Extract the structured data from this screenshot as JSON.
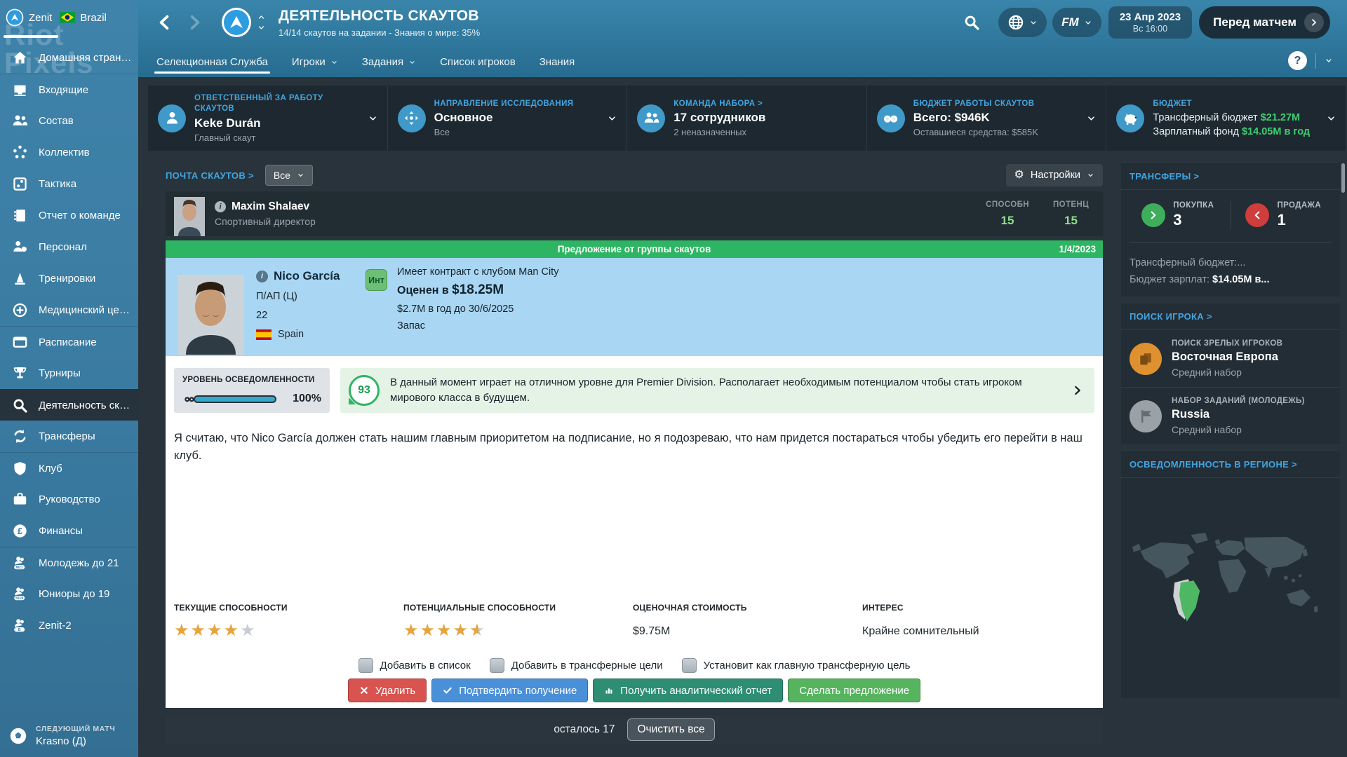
{
  "watermark": {
    "line1": "Riot",
    "line2": "Pixels"
  },
  "topbar": {
    "club_name": "Zenit",
    "nation_name": "Brazil",
    "title": "ДЕЯТЕЛЬНОСТЬ СКАУТОВ",
    "subtitle": "14/14 скаутов на задании - Знания о мире: 35%",
    "fm_label": "FM",
    "date_line1": "23 Апр 2023",
    "date_line2": "Вс 16:00",
    "continue_label": "Перед матчем",
    "help_label": "?"
  },
  "tabs": [
    {
      "label": "Селекционная Служба"
    },
    {
      "label": "Игроки"
    },
    {
      "label": "Задания"
    },
    {
      "label": "Список игроков"
    },
    {
      "label": "Знания"
    }
  ],
  "sidebar": {
    "items": [
      {
        "label": "Домашняя страница"
      },
      {
        "label": "Входящие"
      },
      {
        "label": "Состав"
      },
      {
        "label": "Коллектив"
      },
      {
        "label": "Тактика"
      },
      {
        "label": "Отчет о команде"
      },
      {
        "label": "Персонал"
      },
      {
        "label": "Тренировки"
      },
      {
        "label": "Медицинский центр"
      },
      {
        "label": "Расписание"
      },
      {
        "label": "Турниры"
      },
      {
        "label": "Деятельность скаут..."
      },
      {
        "label": "Трансферы"
      },
      {
        "label": "Клуб"
      },
      {
        "label": "Руководство"
      },
      {
        "label": "Финансы"
      },
      {
        "label": "Молодежь до 21"
      },
      {
        "label": "Юниоры до 19"
      },
      {
        "label": "Zenit-2"
      }
    ],
    "next_match_caption": "СЛЕДУЮЩИЙ МАТЧ",
    "next_match_team": "Krasno (Д)"
  },
  "info_panels": {
    "responsible": {
      "caption": "ОТВЕТСТВЕННЫЙ ЗА РАБОТУ СКАУТОВ",
      "value": "Keke Durán",
      "sub": "Главный скаут"
    },
    "focus": {
      "caption": "НАПРАВЛЕНИЕ ИССЛЕДОВАНИЯ",
      "value": "Основное",
      "sub": "Все"
    },
    "team": {
      "caption": "КОМАНДА НАБОРА >",
      "value": "17 сотрудников",
      "sub": "2 неназначенных"
    },
    "scout_budget": {
      "caption": "БЮДЖЕТ РАБОТЫ СКАУТОВ",
      "value": "Всего: $946K",
      "sub": "Оставшиеся средства: $585K"
    },
    "budget": {
      "caption": "БЮДЖЕТ",
      "row1_label": "Трансферный бюджет ",
      "row1_value": "$21.27M",
      "row2_label": "Зарплатный фонд ",
      "row2_value": "$14.05M в год"
    }
  },
  "toolbar": {
    "mail_link": "ПОЧТА СКАУТОВ >",
    "filter_value": "Все",
    "settings_label": "Настройки"
  },
  "mail_item": {
    "name": "Maxim Shalaev",
    "role": "Спортивный директор",
    "ability_label": "СПОСОБН",
    "ability_value": "15",
    "potential_label": "ПОТЕНЦ",
    "potential_value": "15"
  },
  "report": {
    "banner_title": "Предложение от группы скаутов",
    "banner_date": "1/4/2023",
    "player": {
      "name": "Nico García",
      "position": "П/АП (Ц)",
      "age": "22",
      "nation": "Spain",
      "interest_badge": "Инт",
      "contract_line": "Имеет контракт с клубом Man City",
      "valuation_prefix": "Оценен в ",
      "valuation_value": "$18.25M",
      "wage_line": "$2.7M в год до 30/6/2025",
      "squad_status": "Запас"
    },
    "awareness_label": "УРОВЕНЬ ОСВЕДОМЛЕННОСТИ",
    "awareness_value": "100%",
    "rating_score": "93",
    "rating_text": "В данный момент играет на отличном уровне для Premier Division. Располагает необходимым потенциалом чтобы стать игроком мирового класса в будущем.",
    "body_text": "Я считаю, что Nico García должен стать нашим главным приоритетом на подписание, но я подозреваю, что нам придется постараться чтобы убедить его перейти в наш клуб.",
    "stats": {
      "current_label": "ТЕКУЩИЕ СПОСОБНОСТИ",
      "current_stars": 4,
      "potential_label": "ПОТЕНЦИАЛЬНЫЕ СПОСОБНОСТИ",
      "potential_stars": 4.5,
      "value_label": "ОЦЕНОЧНАЯ СТОИМОСТЬ",
      "value_value": "$9.75M",
      "interest_label": "ИНТЕРЕС",
      "interest_value": "Крайне сомнительный"
    },
    "checkboxes": [
      {
        "label": "Добавить в список"
      },
      {
        "label": "Добавить в трансферные цели"
      },
      {
        "label": "Установит как главную трансферную цель"
      }
    ],
    "buttons": {
      "delete": "Удалить",
      "confirm": "Подтвердить получение",
      "analytics": "Получить аналитический отчет",
      "offer": "Сделать предложение"
    }
  },
  "footer": {
    "remaining": "осталось 17",
    "clear_all": "Очистить все"
  },
  "right_panel": {
    "transfers": {
      "header": "ТРАНСФЕРЫ >",
      "buy_label": "ПОКУПКА",
      "buy_value": "3",
      "sell_label": "ПРОДАЖА",
      "sell_value": "1",
      "budget_line": "Трансферный бюджет:...",
      "wage_label": "Бюджет зарплат: ",
      "wage_value": "$14.05M в..."
    },
    "player_search": {
      "header": "ПОИСК ИГРОКА >",
      "senior_caption": "ПОИСК ЗРЕЛЫХ ИГРОКОВ",
      "senior_value": "Восточная Европа",
      "senior_sub": "Средний набор",
      "youth_caption": "НАБОР ЗАДАНИЙ (МОЛОДЕЖЬ)",
      "youth_value": "Russia",
      "youth_sub": "Средний набор"
    },
    "region": {
      "header": "ОСВЕДОМЛЕННОСТЬ В РЕГИОНЕ >"
    }
  },
  "colors": {
    "accent_blue": "#41a5e1",
    "banner_green": "#2eb563",
    "value_green": "#3ecf70",
    "gold": "#e8a33d",
    "red": "#d9534f",
    "button_blue": "#4a90d9",
    "button_teal": "#2d8e74",
    "button_green": "#56b45f"
  }
}
